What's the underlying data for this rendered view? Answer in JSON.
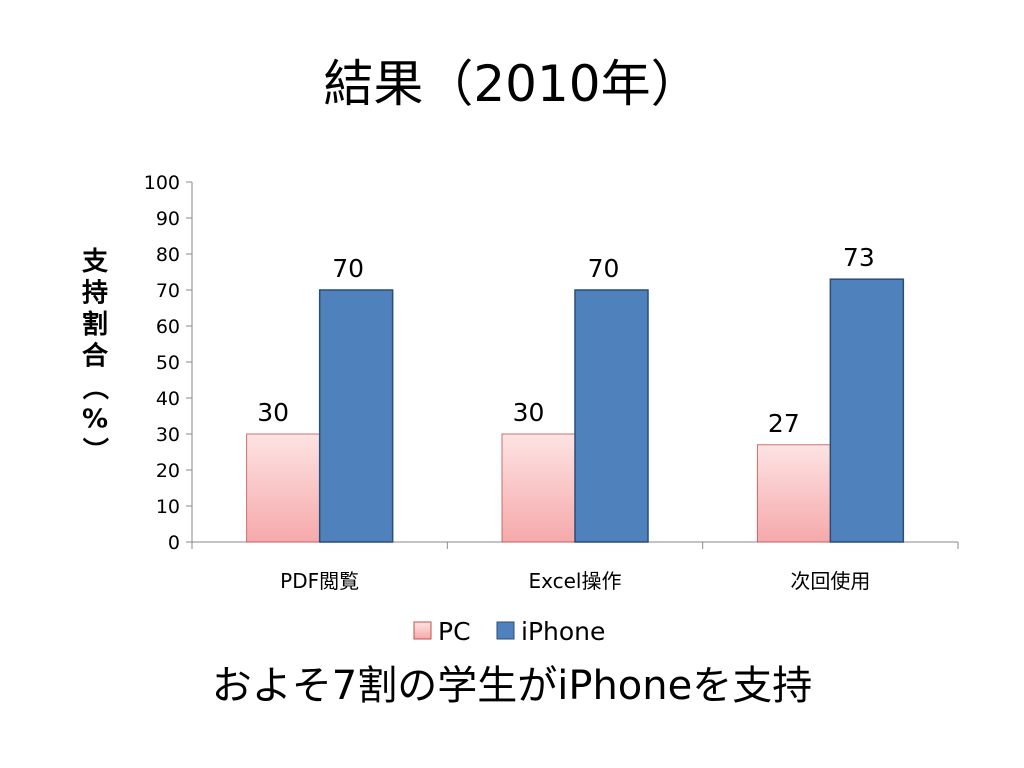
{
  "slide": {
    "title": "結果（2010年）",
    "caption": "およそ7割の学生がiPhoneを支持"
  },
  "chart_data": {
    "type": "bar",
    "title": "",
    "xlabel": "",
    "ylabel": "支持割合（%）",
    "ylim": [
      0,
      100
    ],
    "ytick_step": 10,
    "grid": false,
    "legend_position": "bottom",
    "categories": [
      "PDF閲覧",
      "Excel操作",
      "次回使用"
    ],
    "series": [
      {
        "name": "PC",
        "values": [
          30,
          30,
          27
        ],
        "color_top": "#fde3e3",
        "color_bottom": "#f6a9ab",
        "stroke": "#c0504d"
      },
      {
        "name": "iPhone",
        "values": [
          70,
          70,
          73
        ],
        "color": "#4f81bd",
        "stroke": "#2c4d75"
      }
    ]
  }
}
